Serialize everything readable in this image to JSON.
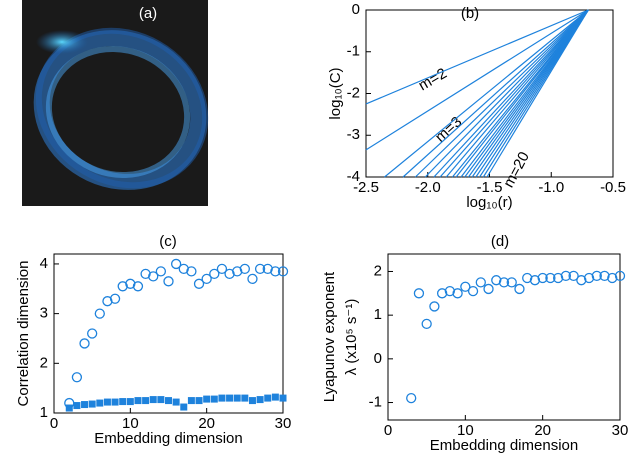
{
  "chart_data": [
    {
      "type": "image",
      "title": "(a)"
    },
    {
      "type": "line",
      "title": "(b)",
      "xlabel": "log₁₀(r)",
      "ylabel": "log₁₀(C)",
      "xlim": [
        -2.5,
        -0.5
      ],
      "ylim": [
        -4,
        0
      ],
      "xticks": [
        -2.5,
        {
          "value": -2,
          "label": "-2.0"
        },
        -1.5,
        {
          "value": -1,
          "label": "-1.0"
        },
        -0.5
      ],
      "yticks": [
        0,
        -1,
        -2,
        -3,
        -4
      ],
      "annotations": [
        "m=2",
        "m=3",
        "m=20"
      ],
      "series": [
        {
          "color": "#1e82dc",
          "x": [
            -2.5,
            -0.7
          ],
          "values": [
            -2.25,
            0
          ]
        },
        {
          "color": "#1e82dc",
          "x": [
            -2.5,
            -0.7
          ],
          "values": [
            -3.35,
            0
          ]
        },
        {
          "color": "#1e82dc",
          "x": [
            -2.35,
            -0.7
          ],
          "values": [
            -4,
            0
          ]
        },
        {
          "color": "#1e82dc",
          "x": [
            -2.2,
            -0.7
          ],
          "values": [
            -4,
            0
          ]
        },
        {
          "color": "#1e82dc",
          "x": [
            -2.1,
            -0.7
          ],
          "values": [
            -4,
            0
          ]
        },
        {
          "color": "#1e82dc",
          "x": [
            -2.02,
            -0.7
          ],
          "values": [
            -4,
            0
          ]
        },
        {
          "color": "#1e82dc",
          "x": [
            -1.95,
            -0.7
          ],
          "values": [
            -4,
            0
          ]
        },
        {
          "color": "#1e82dc",
          "x": [
            -1.9,
            -0.7
          ],
          "values": [
            -4,
            0
          ]
        },
        {
          "color": "#1e82dc",
          "x": [
            -1.85,
            -0.7
          ],
          "values": [
            -4,
            0
          ]
        },
        {
          "color": "#1e82dc",
          "x": [
            -1.8,
            -0.7
          ],
          "values": [
            -4,
            0
          ]
        },
        {
          "color": "#1e82dc",
          "x": [
            -1.77,
            -0.7
          ],
          "values": [
            -4,
            0
          ]
        },
        {
          "color": "#1e82dc",
          "x": [
            -1.73,
            -0.7
          ],
          "values": [
            -4,
            0
          ]
        },
        {
          "color": "#1e82dc",
          "x": [
            -1.7,
            -0.7
          ],
          "values": [
            -4,
            0
          ]
        },
        {
          "color": "#1e82dc",
          "x": [
            -1.67,
            -0.7
          ],
          "values": [
            -4,
            0
          ]
        },
        {
          "color": "#1e82dc",
          "x": [
            -1.64,
            -0.7
          ],
          "values": [
            -4,
            0
          ]
        },
        {
          "color": "#1e82dc",
          "x": [
            -1.61,
            -0.7
          ],
          "values": [
            -4,
            0
          ]
        },
        {
          "color": "#1e82dc",
          "x": [
            -1.58,
            -0.7
          ],
          "values": [
            -4,
            0
          ]
        },
        {
          "color": "#1e82dc",
          "x": [
            -1.55,
            -0.7
          ],
          "values": [
            -4,
            0
          ]
        },
        {
          "color": "#1e82dc",
          "x": [
            -1.52,
            -0.7
          ],
          "values": [
            -4,
            0
          ]
        }
      ]
    },
    {
      "type": "scatter",
      "title": "(c)",
      "xlabel": "Embedding dimension",
      "ylabel": "Correlation dimension",
      "xlim": [
        0,
        30
      ],
      "ylim": [
        1,
        4.2
      ],
      "xticks": [
        0,
        10,
        20,
        30
      ],
      "yticks": [
        1,
        2,
        3,
        4
      ],
      "series": [
        {
          "color": "#1e82dc",
          "marker": "circle-open",
          "x": [
            2,
            3,
            4,
            5,
            6,
            7,
            8,
            9,
            10,
            11,
            12,
            13,
            14,
            15,
            16,
            17,
            18,
            19,
            20,
            21,
            22,
            23,
            24,
            25,
            26,
            27,
            28,
            29,
            30
          ],
          "values": [
            1.2,
            1.72,
            2.4,
            2.6,
            3.0,
            3.25,
            3.3,
            3.55,
            3.6,
            3.55,
            3.8,
            3.75,
            3.85,
            3.65,
            4.0,
            3.9,
            3.85,
            3.6,
            3.7,
            3.8,
            3.9,
            3.8,
            3.85,
            3.9,
            3.7,
            3.9,
            3.9,
            3.85,
            3.85
          ]
        },
        {
          "color": "#1e82dc",
          "marker": "square",
          "x": [
            2,
            3,
            4,
            5,
            6,
            7,
            8,
            9,
            10,
            11,
            12,
            13,
            14,
            15,
            16,
            17,
            18,
            19,
            20,
            21,
            22,
            23,
            24,
            25,
            26,
            27,
            28,
            29,
            30
          ],
          "values": [
            1.1,
            1.15,
            1.17,
            1.18,
            1.2,
            1.22,
            1.22,
            1.23,
            1.23,
            1.25,
            1.25,
            1.27,
            1.27,
            1.25,
            1.22,
            1.12,
            1.25,
            1.25,
            1.28,
            1.28,
            1.3,
            1.3,
            1.3,
            1.3,
            1.25,
            1.27,
            1.3,
            1.32,
            1.3
          ]
        }
      ]
    },
    {
      "type": "scatter",
      "title": "(d)",
      "xlabel": "Embedding dimension",
      "ylabel": [
        "Lyapunov exponent",
        "λ (x10⁵ s⁻¹)"
      ],
      "xlim": [
        0,
        30
      ],
      "ylim": [
        -1.4,
        2.4
      ],
      "xticks": [
        0,
        10,
        20,
        30
      ],
      "yticks": [
        -1,
        0,
        1,
        2
      ],
      "series": [
        {
          "color": "#1e82dc",
          "marker": "circle-open",
          "x": [
            3,
            4,
            5,
            6,
            7,
            8,
            9,
            10,
            11,
            12,
            13,
            14,
            15,
            16,
            17,
            18,
            19,
            20,
            21,
            22,
            23,
            24,
            25,
            26,
            27,
            28,
            29,
            30
          ],
          "values": [
            -0.9,
            1.5,
            0.8,
            1.2,
            1.5,
            1.55,
            1.5,
            1.65,
            1.55,
            1.75,
            1.6,
            1.8,
            1.75,
            1.75,
            1.6,
            1.85,
            1.8,
            1.85,
            1.85,
            1.85,
            1.9,
            1.9,
            1.8,
            1.85,
            1.9,
            1.9,
            1.85,
            1.9
          ]
        }
      ]
    }
  ]
}
